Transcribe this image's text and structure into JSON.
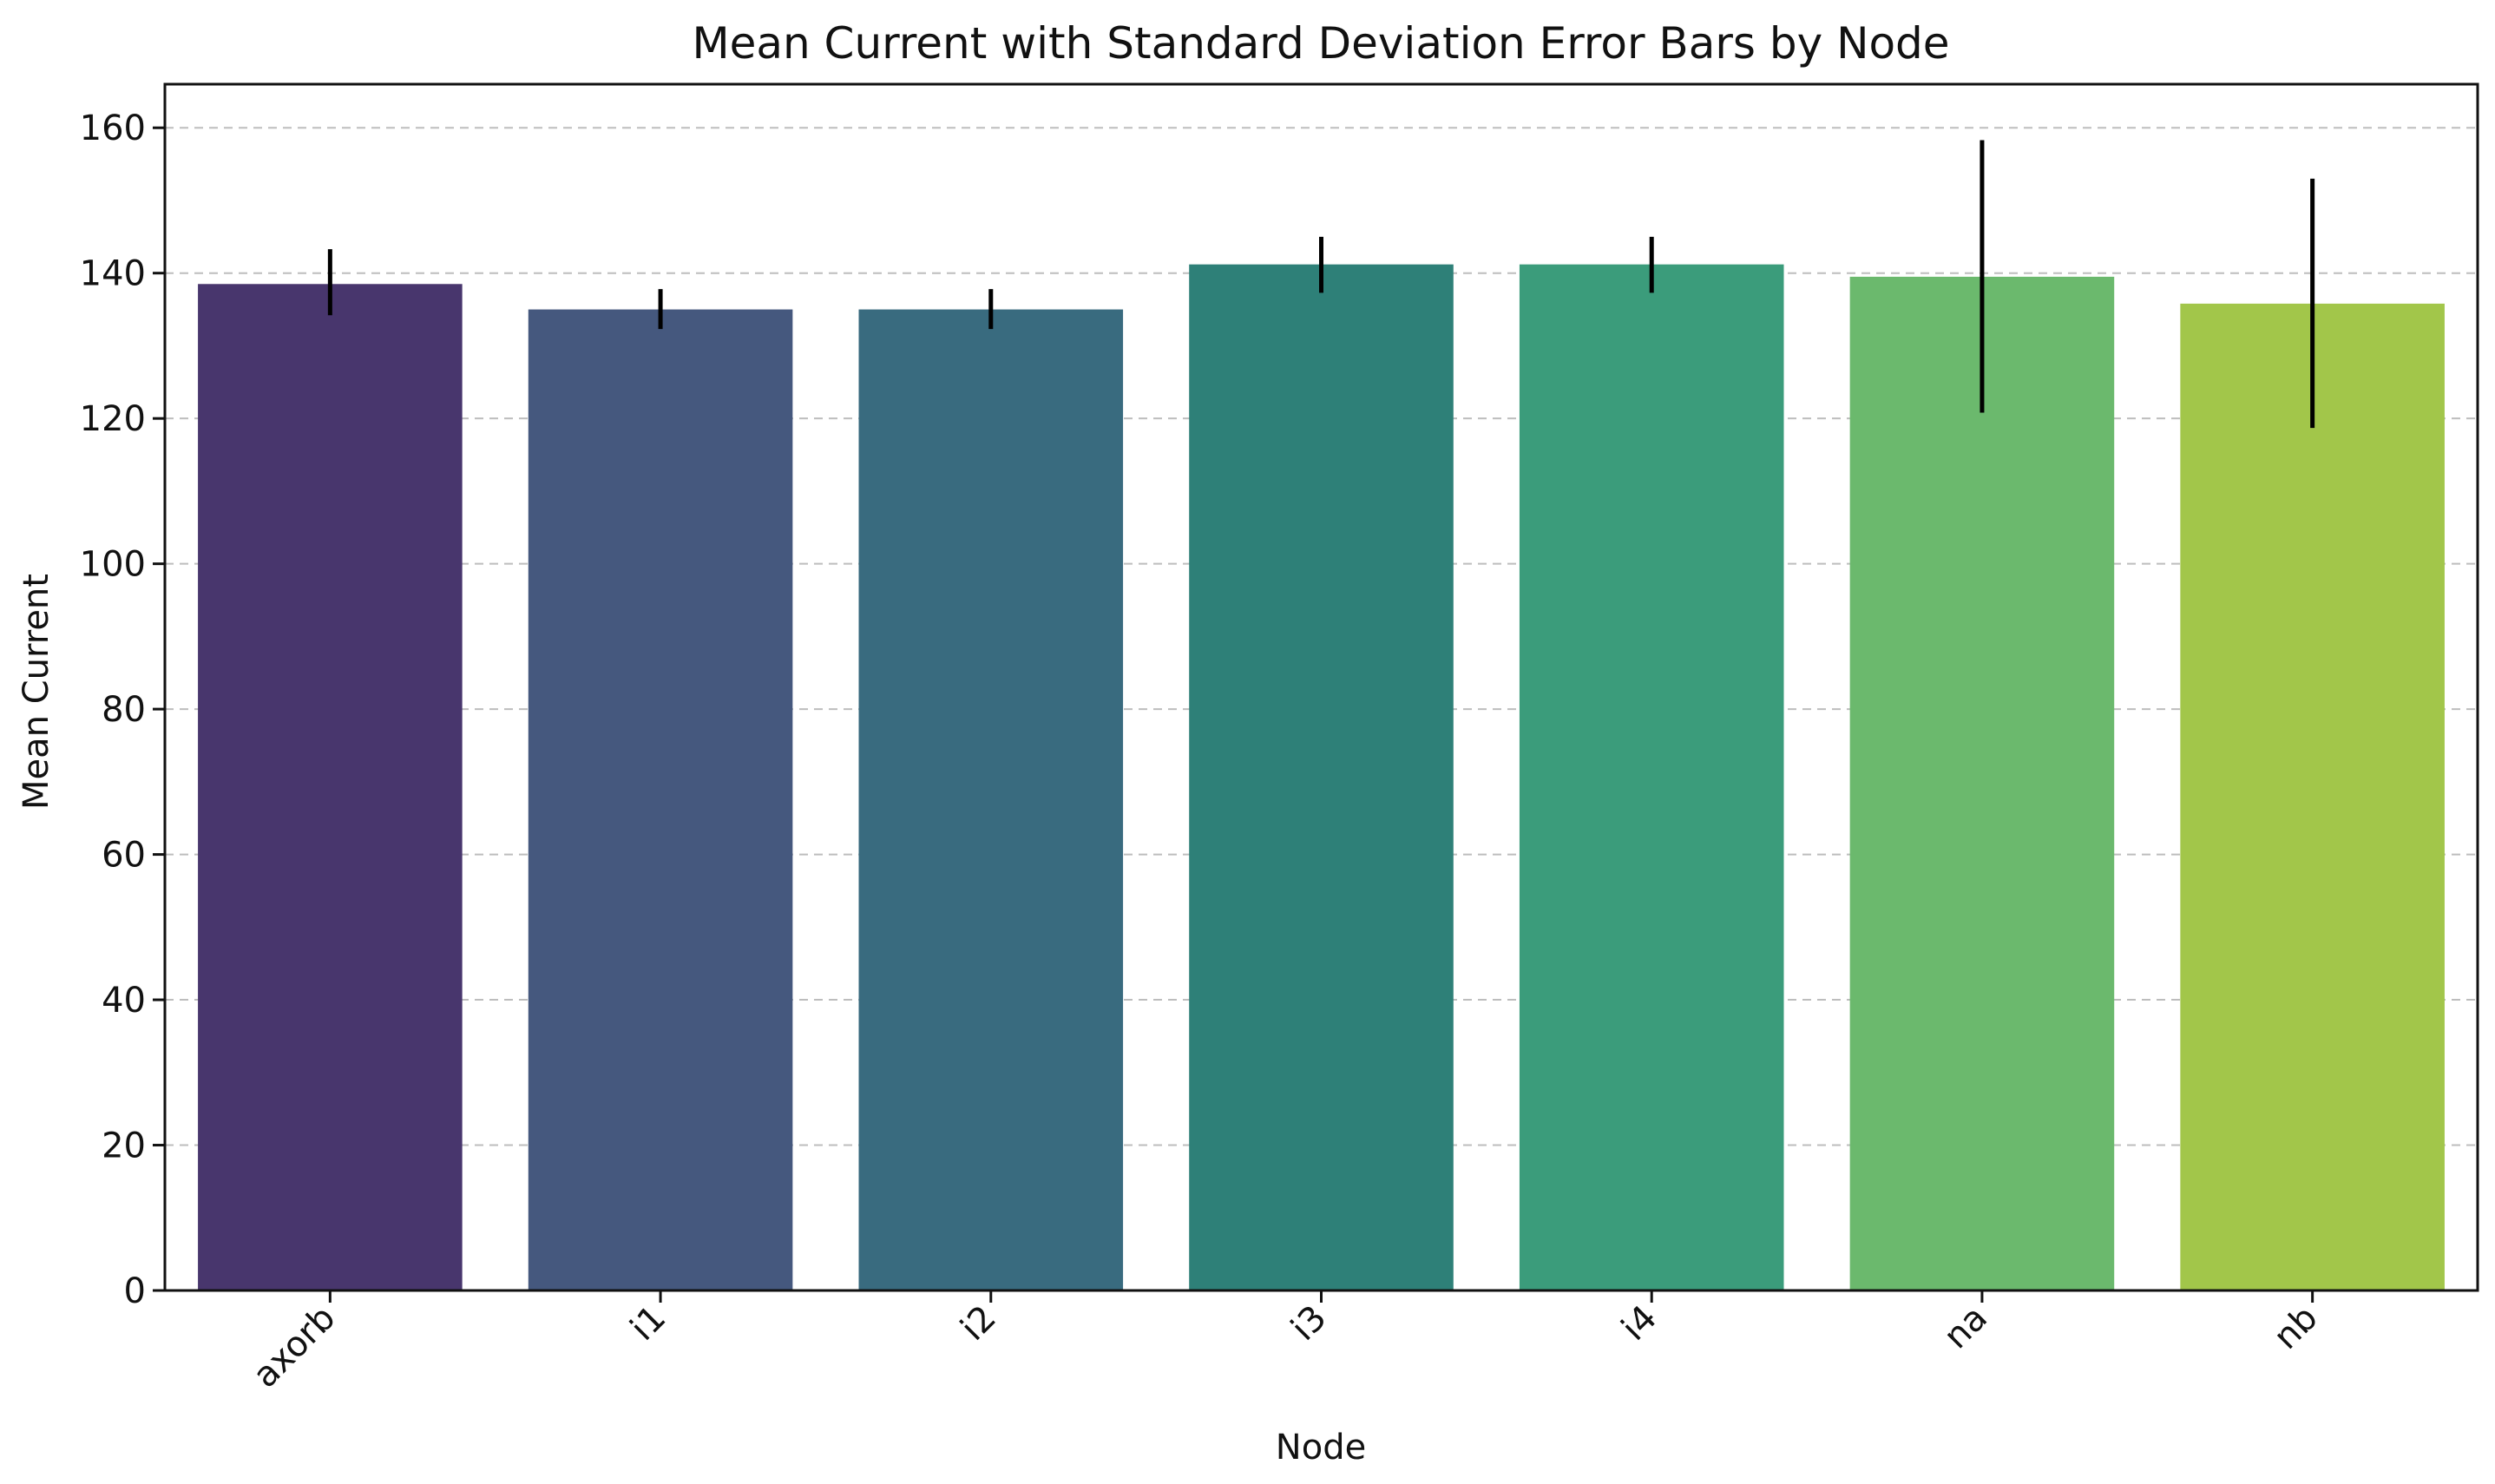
{
  "chart_data": {
    "type": "bar",
    "title": "Mean Current with Standard Deviation Error Bars by Node",
    "xlabel": "Node",
    "ylabel": "Mean Current",
    "categories": [
      "axorb",
      "i1",
      "i2",
      "i3",
      "i4",
      "na",
      "nb"
    ],
    "values": [
      138.5,
      135.0,
      135.0,
      141.2,
      141.2,
      139.5,
      135.8
    ],
    "error_low": [
      134.2,
      132.3,
      132.3,
      137.3,
      137.3,
      120.8,
      118.7
    ],
    "error_high": [
      143.3,
      137.8,
      137.8,
      145.0,
      145.0,
      158.3,
      153.0
    ],
    "bar_colors": [
      "#48366d",
      "#45587e",
      "#396b7f",
      "#2e8078",
      "#3b9c7b",
      "#6bb96d",
      "#a2c64a"
    ],
    "ylim": [
      0,
      166
    ],
    "yticks": [
      0,
      20,
      40,
      60,
      80,
      100,
      120,
      140,
      160
    ],
    "grid": true,
    "legend": false
  }
}
